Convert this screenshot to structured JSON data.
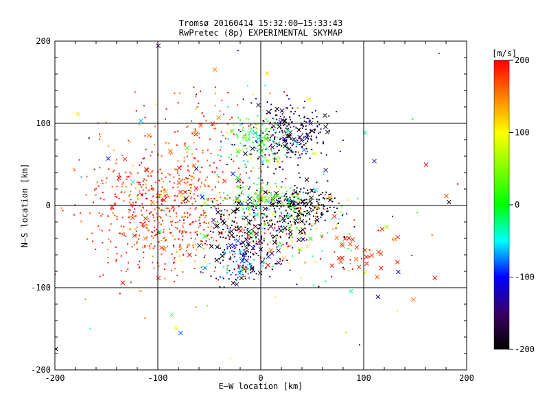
{
  "chart_data": {
    "type": "scatter",
    "title": "Tromsø 20160414 15:32:00–15:33:43",
    "subtitle": "RwPretec (8p) EXPERIMENTAL SKYMAP",
    "xlabel": "E–W location [km]",
    "ylabel": "N–S location [km]",
    "xlim": [
      -200,
      200
    ],
    "ylim": [
      -200,
      200
    ],
    "x_ticks": [
      "-200",
      "-100",
      "0",
      "100",
      "200"
    ],
    "y_ticks": [
      "-200",
      "-100",
      "0",
      "100",
      "200"
    ],
    "grid": true,
    "colorbar": {
      "label": "[m/s]",
      "min": -200,
      "max": 200,
      "ticks": [
        "200",
        "100",
        "0",
        "-100",
        "-200"
      ],
      "colormap": "black-purple-blue-cyan-green-yellow-red"
    },
    "markers": [
      "dot",
      "x"
    ],
    "clusters": [
      {
        "name": "west-red-cloud",
        "cx": -95,
        "cy": -5,
        "sx": 38,
        "sy": 42,
        "n": 650,
        "v": 180,
        "vsd": 25,
        "xfrac": 0.04
      },
      {
        "name": "north-east-dark",
        "cx": 25,
        "cy": 85,
        "sx": 20,
        "sy": 18,
        "n": 260,
        "v": -170,
        "vsd": 35,
        "xfrac": 0.12
      },
      {
        "name": "north-east-cyan",
        "cx": -5,
        "cy": 80,
        "sx": 18,
        "sy": 14,
        "n": 140,
        "v": -10,
        "vsd": 40,
        "xfrac": 0.05
      },
      {
        "name": "east-black",
        "cx": 40,
        "cy": 0,
        "sx": 18,
        "sy": 12,
        "n": 200,
        "v": -195,
        "vsd": 10,
        "xfrac": 0.15
      },
      {
        "name": "center-green",
        "cx": 5,
        "cy": 5,
        "sx": 25,
        "sy": 10,
        "n": 180,
        "v": 10,
        "vsd": 60,
        "xfrac": 0.04
      },
      {
        "name": "south-dark",
        "cx": -10,
        "cy": -40,
        "sx": 22,
        "sy": 25,
        "n": 260,
        "v": -175,
        "vsd": 30,
        "xfrac": 0.18
      },
      {
        "name": "south-blue",
        "cx": -25,
        "cy": -70,
        "sx": 14,
        "sy": 12,
        "n": 70,
        "v": -80,
        "vsd": 25,
        "xfrac": 0.12
      },
      {
        "name": "east-red-crosses",
        "cx": 100,
        "cy": -55,
        "sx": 18,
        "sy": 14,
        "n": 35,
        "v": 185,
        "vsd": 15,
        "xfrac": 0.8
      },
      {
        "name": "center-mixed",
        "cx": 20,
        "cy": -30,
        "sx": 28,
        "sy": 25,
        "n": 160,
        "v": 60,
        "vsd": 120,
        "xfrac": 0.05
      },
      {
        "name": "north-red",
        "cx": -60,
        "cy": 110,
        "sx": 35,
        "sy": 25,
        "n": 60,
        "v": 170,
        "vsd": 30,
        "xfrac": 0.1
      },
      {
        "name": "scattered",
        "cx": 0,
        "cy": 0,
        "sx": 85,
        "sy": 85,
        "n": 140,
        "v": 50,
        "vsd": 150,
        "xfrac": 0.35
      }
    ]
  }
}
